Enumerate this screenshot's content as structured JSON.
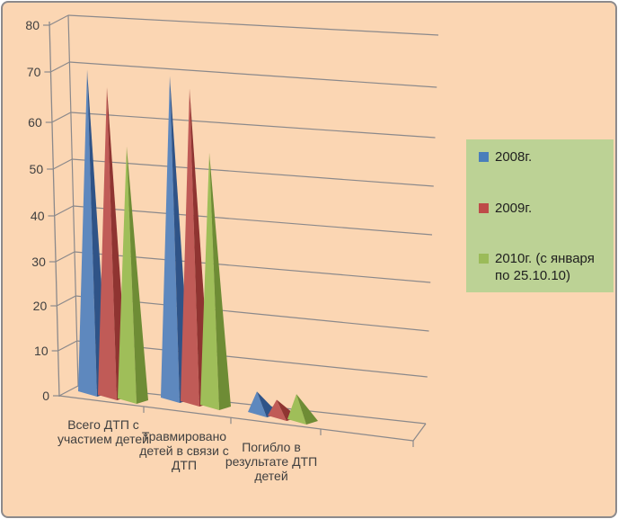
{
  "chart_data": {
    "type": "bar",
    "style": "3d-pyramid",
    "title": "",
    "xlabel": "",
    "ylabel": "",
    "ylim": [
      0,
      80
    ],
    "yticks": [
      0,
      10,
      20,
      30,
      40,
      50,
      60,
      70,
      80
    ],
    "grid": true,
    "legend_position": "right",
    "categories": [
      {
        "label": "Всего ДТП с участием детей",
        "lines": [
          "Всего ДТП с",
          "участием детей"
        ]
      },
      {
        "label": "Травмировано детей в связи с ДТП",
        "lines": [
          "Травмировано",
          "детей в связи с",
          "ДТП"
        ]
      },
      {
        "label": "Погибло в результате ДТП детей",
        "lines": [
          "Погибло в",
          "результате ДТП",
          "детей"
        ]
      }
    ],
    "series": [
      {
        "name": "2008г.",
        "color": "#4F81BD",
        "color_light": "#5E88BE",
        "color_dark": "#2F5387",
        "values": [
          70,
          70,
          5
        ]
      },
      {
        "name": "2009г.",
        "color": "#BE4B48",
        "color_light": "#C05B57",
        "color_dark": "#8F3431",
        "values": [
          67,
          68,
          4
        ]
      },
      {
        "name": "2010г.  (с января по 25.10.10)",
        "color": "#9BBB59",
        "color_light": "#9FBE59",
        "color_dark": "#6E8C35",
        "values": [
          55,
          55,
          6
        ]
      }
    ]
  },
  "legend": {
    "items": [
      {
        "color": "#4A7EBB",
        "lines": [
          "2008г."
        ]
      },
      {
        "color": "#BE4B48",
        "lines": [
          "2009г."
        ]
      },
      {
        "color": "#9BBB59",
        "lines": [
          "2010г.  (с января",
          "по 25.10.10)"
        ]
      }
    ]
  },
  "colors": {
    "background": "#FBD6B3",
    "legend_background": "#BCD295",
    "gridline": "#8B898B",
    "axis": "#8B898B",
    "text": "#404040",
    "legend_text": "#1F1F1F",
    "border": "#8C8A8C"
  }
}
